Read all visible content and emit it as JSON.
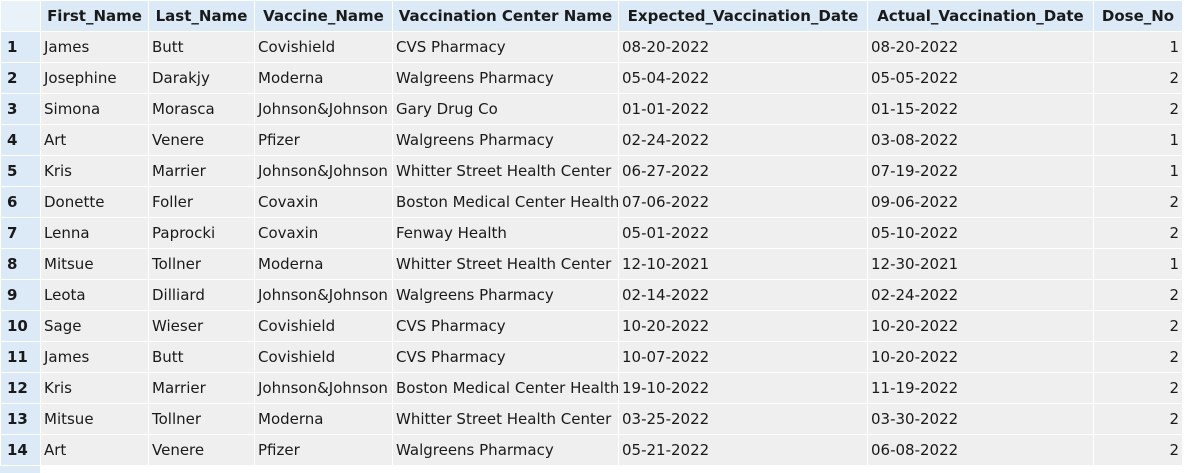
{
  "columns": [
    "First_Name",
    "Last_Name",
    "Vaccine_Name",
    "Vaccination Center Name",
    "Expected_Vaccination_Date",
    "Actual_Vaccination_Date",
    "Dose_No"
  ],
  "rows": [
    {
      "num": "1",
      "cells": [
        "James",
        "Butt",
        "Covishield",
        "CVS Pharmacy",
        "08-20-2022",
        "08-20-2022",
        "1"
      ]
    },
    {
      "num": "2",
      "cells": [
        "Josephine",
        "Darakjy",
        "Moderna",
        "Walgreens Pharmacy",
        "05-04-2022",
        "05-05-2022",
        "2"
      ]
    },
    {
      "num": "3",
      "cells": [
        "Simona",
        "Morasca",
        "Johnson&Johnson",
        "Gary Drug Co",
        "01-01-2022",
        "01-15-2022",
        "2"
      ]
    },
    {
      "num": "4",
      "cells": [
        "Art",
        "Venere",
        "Pfizer",
        "Walgreens Pharmacy",
        "02-24-2022",
        "03-08-2022",
        "1"
      ]
    },
    {
      "num": "5",
      "cells": [
        "Kris",
        "Marrier",
        "Johnson&Johnson",
        "Whitter Street Health Center",
        "06-27-2022",
        "07-19-2022",
        "1"
      ]
    },
    {
      "num": "6",
      "cells": [
        "Donette",
        "Foller",
        "Covaxin",
        "Boston Medical Center Health",
        "07-06-2022",
        "09-06-2022",
        "2"
      ]
    },
    {
      "num": "7",
      "cells": [
        "Lenna",
        "Paprocki",
        "Covaxin",
        "Fenway Health",
        "05-01-2022",
        "05-10-2022",
        "2"
      ]
    },
    {
      "num": "8",
      "cells": [
        "Mitsue",
        "Tollner",
        "Moderna",
        "Whitter Street Health Center",
        "12-10-2021",
        "12-30-2021",
        "1"
      ]
    },
    {
      "num": "9",
      "cells": [
        "Leota",
        "Dilliard",
        "Johnson&Johnson",
        "Walgreens Pharmacy",
        "02-14-2022",
        "02-24-2022",
        "2"
      ]
    },
    {
      "num": "10",
      "cells": [
        "Sage",
        "Wieser",
        "Covishield",
        "CVS Pharmacy",
        "10-20-2022",
        "10-20-2022",
        "2"
      ]
    },
    {
      "num": "11",
      "cells": [
        "James",
        "Butt",
        "Covishield",
        "CVS Pharmacy",
        "10-07-2022",
        "10-20-2022",
        "2"
      ]
    },
    {
      "num": "12",
      "cells": [
        "Kris",
        "Marrier",
        "Johnson&Johnson",
        "Boston Medical Center Health",
        "19-10-2022",
        "11-19-2022",
        "2"
      ]
    },
    {
      "num": "13",
      "cells": [
        "Mitsue",
        "Tollner",
        "Moderna",
        "Whitter Street Health Center",
        "03-25-2022",
        "03-30-2022",
        "2"
      ]
    },
    {
      "num": "14",
      "cells": [
        "Art",
        "Venere",
        "Pfizer",
        "Walgreens Pharmacy",
        "05-21-2022",
        "06-08-2022",
        "2"
      ]
    }
  ]
}
